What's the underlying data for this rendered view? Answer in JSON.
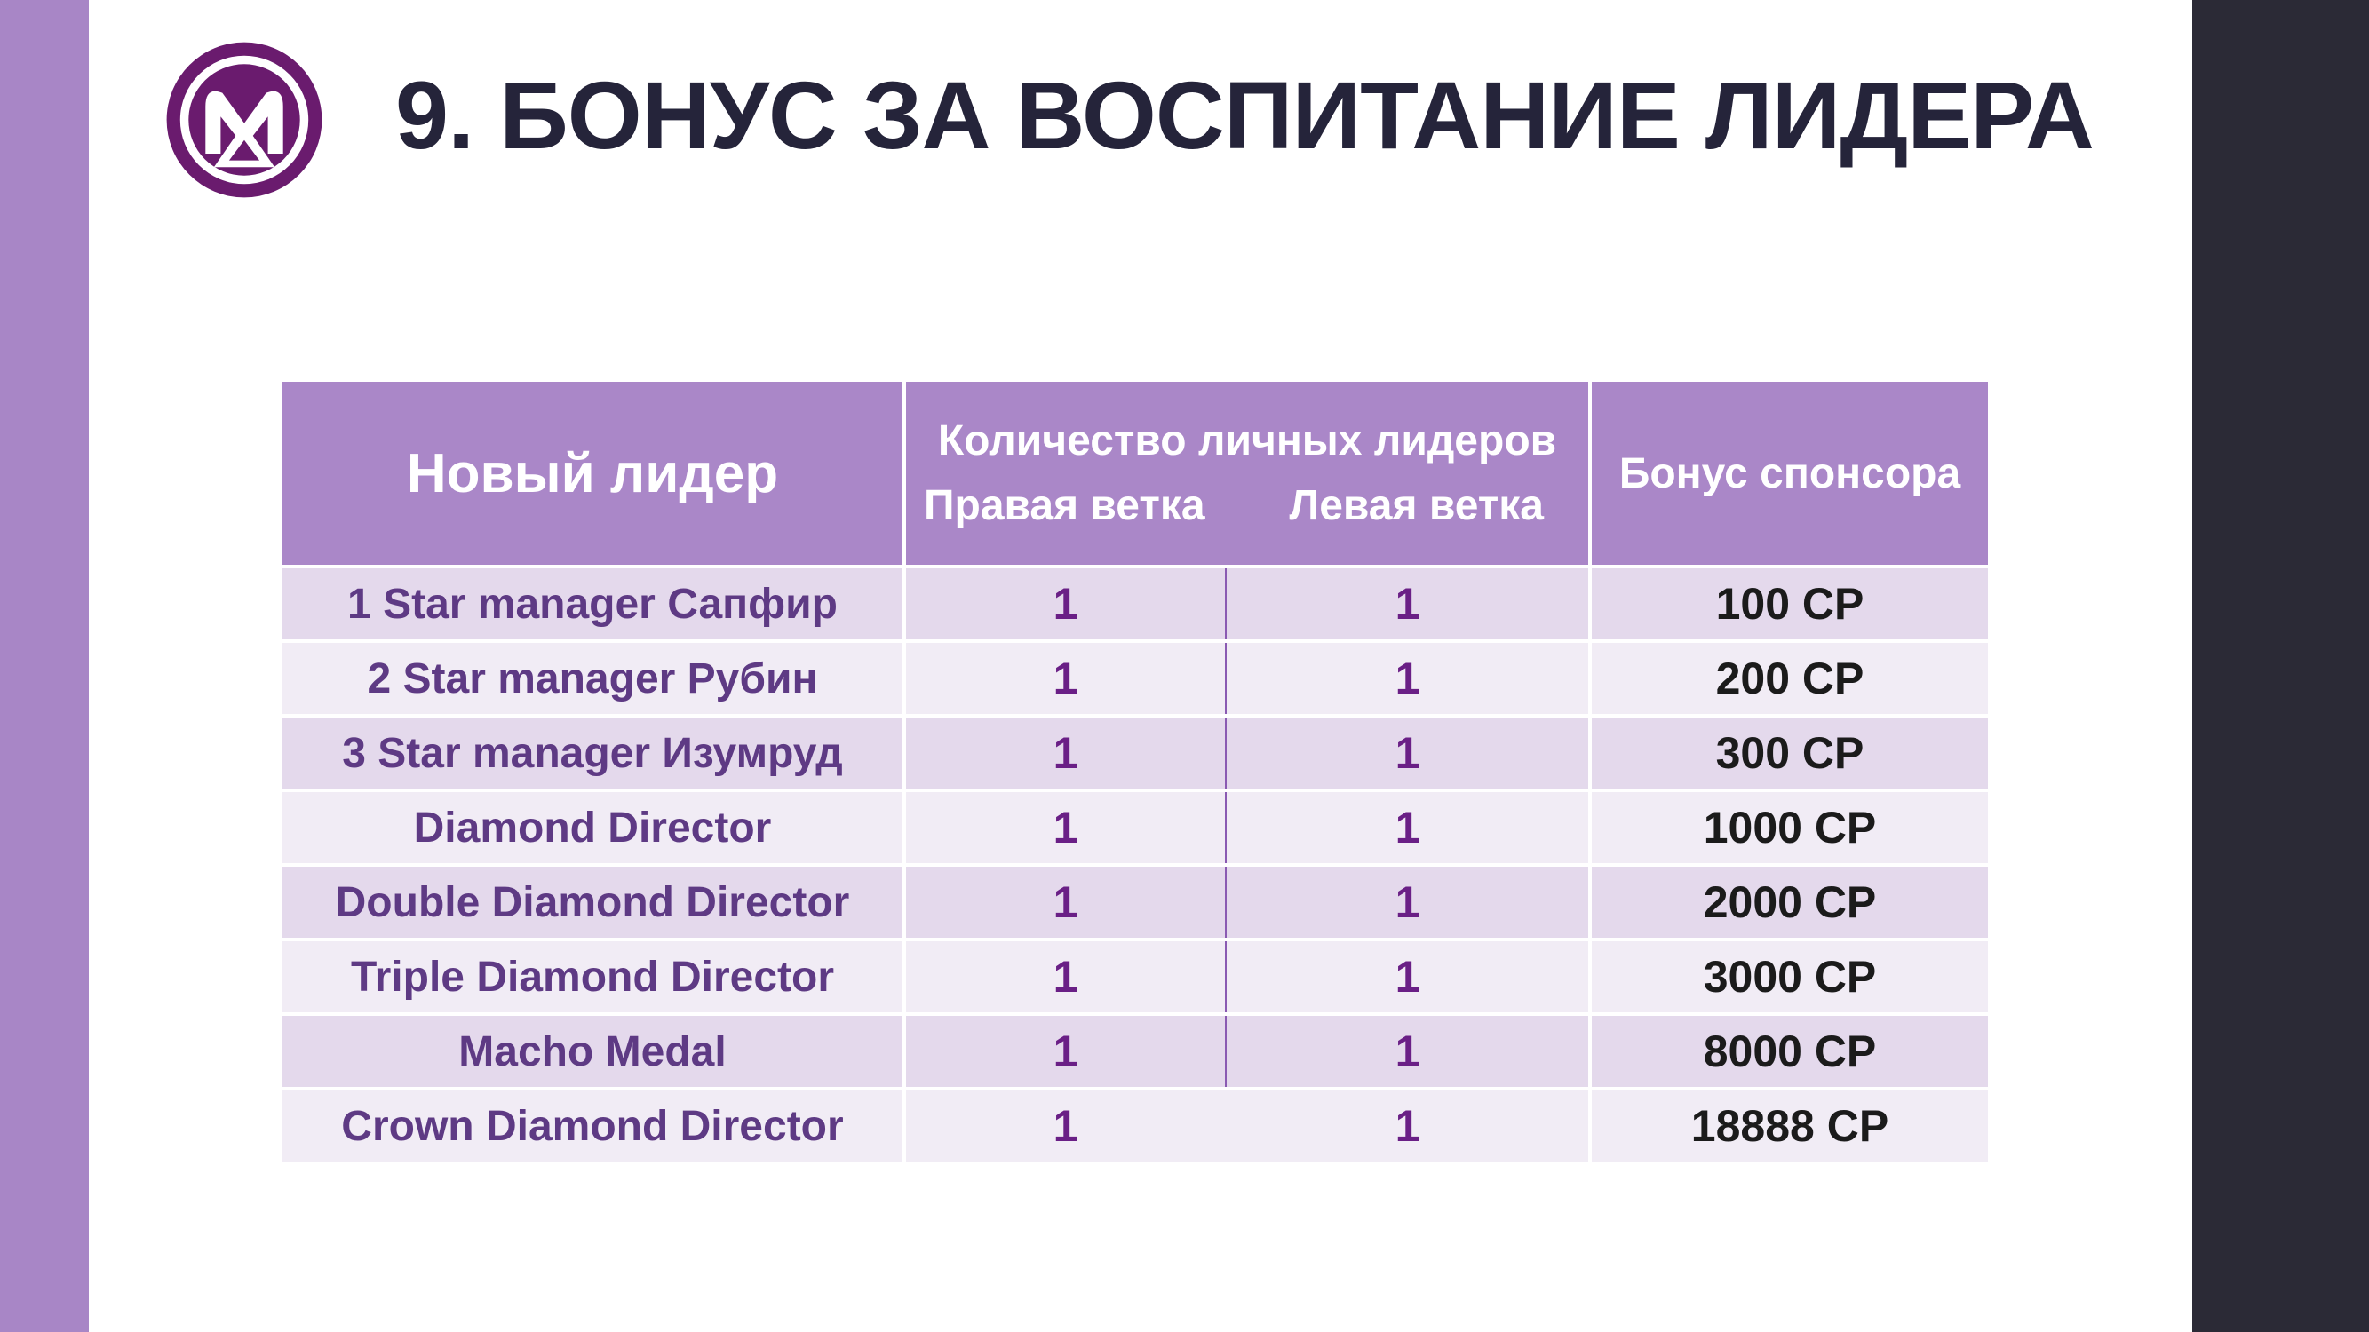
{
  "title": "9. БОНУС ЗА ВОСПИТАНИЕ ЛИДЕРА",
  "logo": {
    "icon": "brand-logo-icon",
    "color": "#6a1b6e"
  },
  "colors": {
    "accent_band": "#a886c6",
    "dark_band": "#2b2a36",
    "table_header": "#aa87c8",
    "row_odd": "#e4d9ec",
    "row_even": "#f1ecf5",
    "leader_text": "#5e3a84",
    "count_text": "#6a1f86"
  },
  "table": {
    "header": {
      "leader": "Новый лидер",
      "count_group": "Количество личных лидеров",
      "right_branch": "Правая ветка",
      "left_branch": "Левая ветка",
      "sponsor_bonus": "Бонус спонсора"
    },
    "rows": [
      {
        "leader": "1 Star manager Сапфир",
        "right": "1",
        "left": "1",
        "bonus": "100 СР"
      },
      {
        "leader": "2 Star manager Рубин",
        "right": "1",
        "left": "1",
        "bonus": "200 СР"
      },
      {
        "leader": "3 Star manager Изумруд",
        "right": "1",
        "left": "1",
        "bonus": "300 СР"
      },
      {
        "leader": "Diamond Director",
        "right": "1",
        "left": "1",
        "bonus": "1000 СР"
      },
      {
        "leader": "Double Diamond Director",
        "right": "1",
        "left": "1",
        "bonus": "2000 СР"
      },
      {
        "leader": "Triple Diamond Director",
        "right": "1",
        "left": "1",
        "bonus": "3000 СР"
      },
      {
        "leader": "Macho Medal",
        "right": "1",
        "left": "1",
        "bonus": "8000 СР"
      },
      {
        "leader": "Crown Diamond Director",
        "right": "1",
        "left": "1",
        "bonus": "18888 СР"
      }
    ]
  }
}
